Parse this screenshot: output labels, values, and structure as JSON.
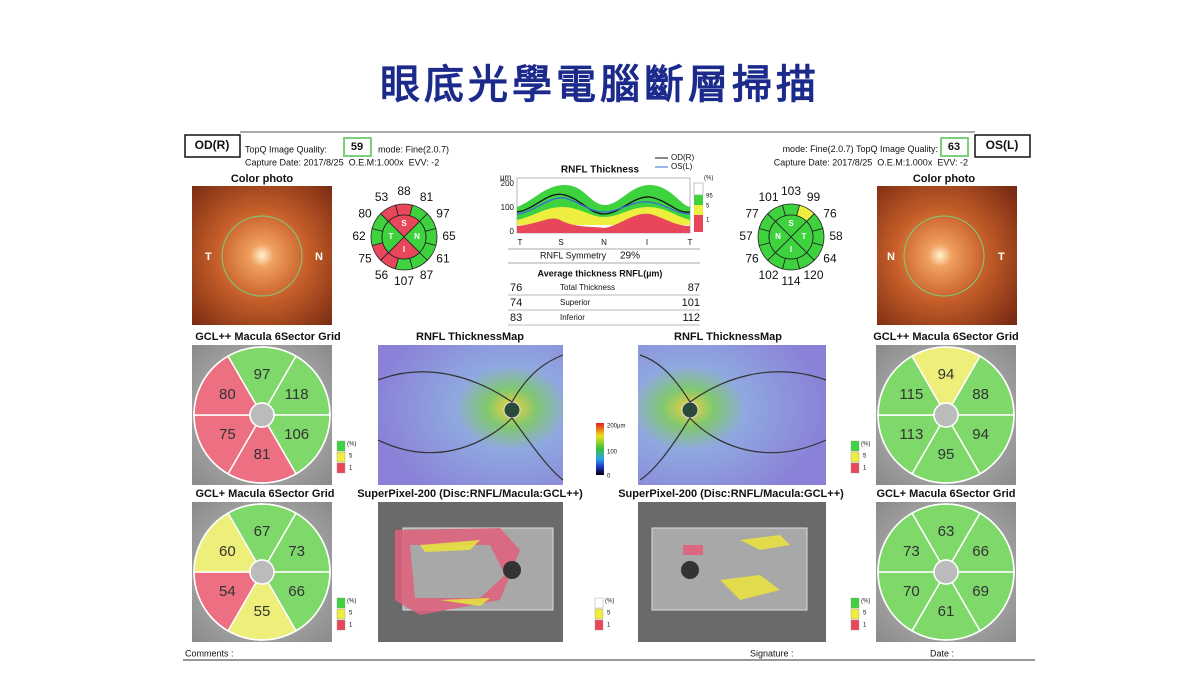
{
  "title": "眼底光學電腦斷層掃描",
  "od": {
    "eye": "OD(R)",
    "quality_label": "TopQ Image Quality:",
    "quality": 59,
    "mode": "mode: Fine(2.0.7)",
    "capture": "Capture Date: 2017/8/25  O.E.M:1.000x  EVV: -2",
    "photo": {
      "label": "Color photo",
      "left": "T",
      "right": "N"
    },
    "clock": {
      "values": [
        88,
        81,
        97,
        65,
        61,
        87,
        107,
        56,
        75,
        62,
        80,
        53
      ],
      "colors": [
        "#e8465a",
        "#3fd23f",
        "#3fd23f",
        "#3fd23f",
        "#3fd23f",
        "#3fd23f",
        "#3fd23f",
        "#e8465a",
        "#e8465a",
        "#3fd23f",
        "#3fd23f",
        "#e8465a"
      ],
      "quadrants": [
        {
          "label": "S",
          "color": "#e8465a"
        },
        {
          "label": "N",
          "color": "#3fd23f"
        },
        {
          "label": "I",
          "color": "#e8465a"
        },
        {
          "label": "T",
          "color": "#3fd23f"
        }
      ]
    },
    "gcl_pp": {
      "label": "GCL++ Macula 6Sector Grid",
      "values": [
        97,
        118,
        106,
        81,
        75,
        80
      ],
      "colors": [
        "#7ed86a",
        "#7ed86a",
        "#7ed86a",
        "#ec6f82",
        "#ec6f82",
        "#ec6f82"
      ]
    },
    "gcl_p": {
      "label": "GCL+ Macula 6Sector Grid",
      "values": [
        67,
        73,
        66,
        55,
        54,
        60
      ],
      "colors": [
        "#7ed86a",
        "#7ed86a",
        "#7ed86a",
        "#eeee7a",
        "#ec6f82",
        "#eeee7a"
      ]
    },
    "map_label": "RNFL ThicknessMap",
    "superpixel_label": "SuperPixel-200 (Disc:RNFL/Macula:GCL++)"
  },
  "os": {
    "eye": "OS(L)",
    "quality_label": "TopQ Image Quality:",
    "quality": 63,
    "mode": "mode: Fine(2.0.7)",
    "capture": "Capture Date: 2017/8/25  O.E.M:1.000x  EVV: -2",
    "photo": {
      "label": "Color photo",
      "left": "N",
      "right": "T"
    },
    "clock": {
      "values": [
        103,
        99,
        76,
        58,
        64,
        120,
        114,
        102,
        76,
        57,
        77,
        101
      ],
      "colors": [
        "#3fd23f",
        "#eeee40",
        "#3fd23f",
        "#3fd23f",
        "#3fd23f",
        "#3fd23f",
        "#3fd23f",
        "#3fd23f",
        "#3fd23f",
        "#3fd23f",
        "#3fd23f",
        "#3fd23f"
      ],
      "quadrants": [
        {
          "label": "S",
          "color": "#3fd23f"
        },
        {
          "label": "T",
          "color": "#3fd23f"
        },
        {
          "label": "I",
          "color": "#3fd23f"
        },
        {
          "label": "N",
          "color": "#3fd23f"
        }
      ]
    },
    "gcl_pp": {
      "label": "GCL++ Macula 6Sector Grid",
      "values": [
        94,
        88,
        94,
        95,
        113,
        115
      ],
      "colors": [
        "#eeee7a",
        "#7ed86a",
        "#7ed86a",
        "#7ed86a",
        "#7ed86a",
        "#7ed86a"
      ]
    },
    "gcl_p": {
      "label": "GCL+ Macula 6Sector Grid",
      "values": [
        63,
        66,
        69,
        61,
        70,
        73
      ],
      "colors": [
        "#7ed86a",
        "#7ed86a",
        "#7ed86a",
        "#7ed86a",
        "#7ed86a",
        "#7ed86a"
      ]
    },
    "map_label": "RNFL ThicknessMap",
    "superpixel_label": "SuperPixel-200 (Disc:RNFL/Macula:GCL++)"
  },
  "rnfl": {
    "title": "RNFL Thickness",
    "legend": [
      "OD(R)",
      "OS(L)"
    ],
    "unit": "µm",
    "yticks": [
      200,
      100,
      0
    ],
    "xlabels": [
      "T",
      "S",
      "N",
      "I",
      "T"
    ],
    "percent": [
      "(%)",
      "95",
      "5",
      "1"
    ],
    "symmetry_label": "RNFL Symmetry",
    "symmetry": "29%",
    "avg_title": "Average thickness RNFL(µm)",
    "rows": [
      {
        "od": 76,
        "label": "Total Thickness",
        "os": 87
      },
      {
        "od": 74,
        "label": "Superior",
        "os": 101
      },
      {
        "od": 83,
        "label": "Inferior",
        "os": 112
      }
    ]
  },
  "map_scale": [
    "200µm",
    "100",
    "0"
  ],
  "legend": [
    "(%)",
    "5",
    "1"
  ],
  "footer": {
    "comments": "Comments :",
    "signature": "Signature :",
    "date": "Date :"
  }
}
